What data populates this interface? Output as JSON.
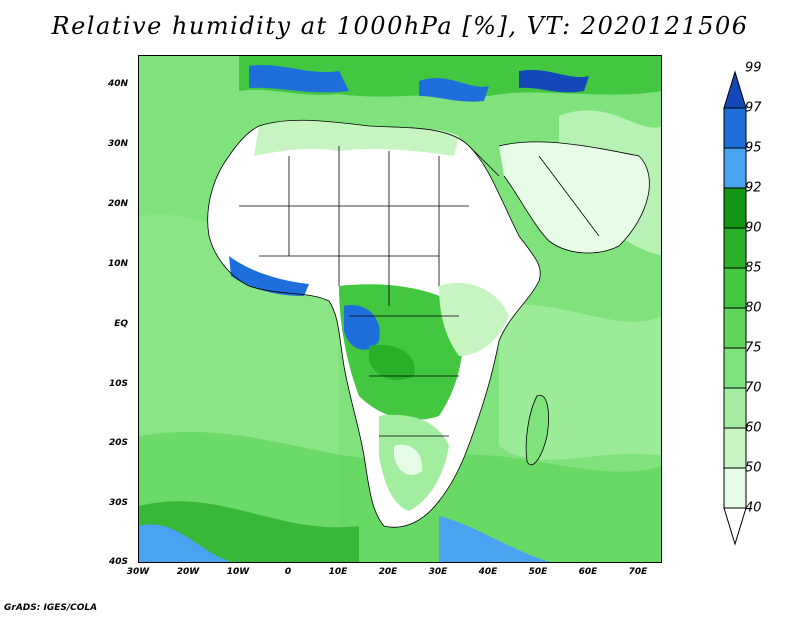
{
  "title": "Relative humidity at 1000hPa [%], VT: 2020121506",
  "y_axis": {
    "ticks": [
      "40N",
      "30N",
      "20N",
      "10N",
      "EQ",
      "10S",
      "20S",
      "30S",
      "40S"
    ]
  },
  "x_axis": {
    "ticks": [
      "30W",
      "20W",
      "10W",
      "0",
      "10E",
      "20E",
      "30E",
      "40E",
      "50E",
      "60E",
      "70E"
    ]
  },
  "colorbar": {
    "levels": [
      "40",
      "50",
      "60",
      "70",
      "75",
      "80",
      "85",
      "90",
      "92",
      "95",
      "97",
      "99"
    ],
    "colors": [
      "#ffffff",
      "#e6fce6",
      "#c6f5c2",
      "#a2eda0",
      "#7fe27d",
      "#5fd55c",
      "#43c640",
      "#2aaf2a",
      "#149614",
      "#4aa3f0",
      "#1e6fdc",
      "#1448b8"
    ]
  },
  "map": {
    "ocean_color": "#7fe27d",
    "land_dry_color": "#ffffff"
  },
  "footer": "GrADS: IGES/COLA"
}
